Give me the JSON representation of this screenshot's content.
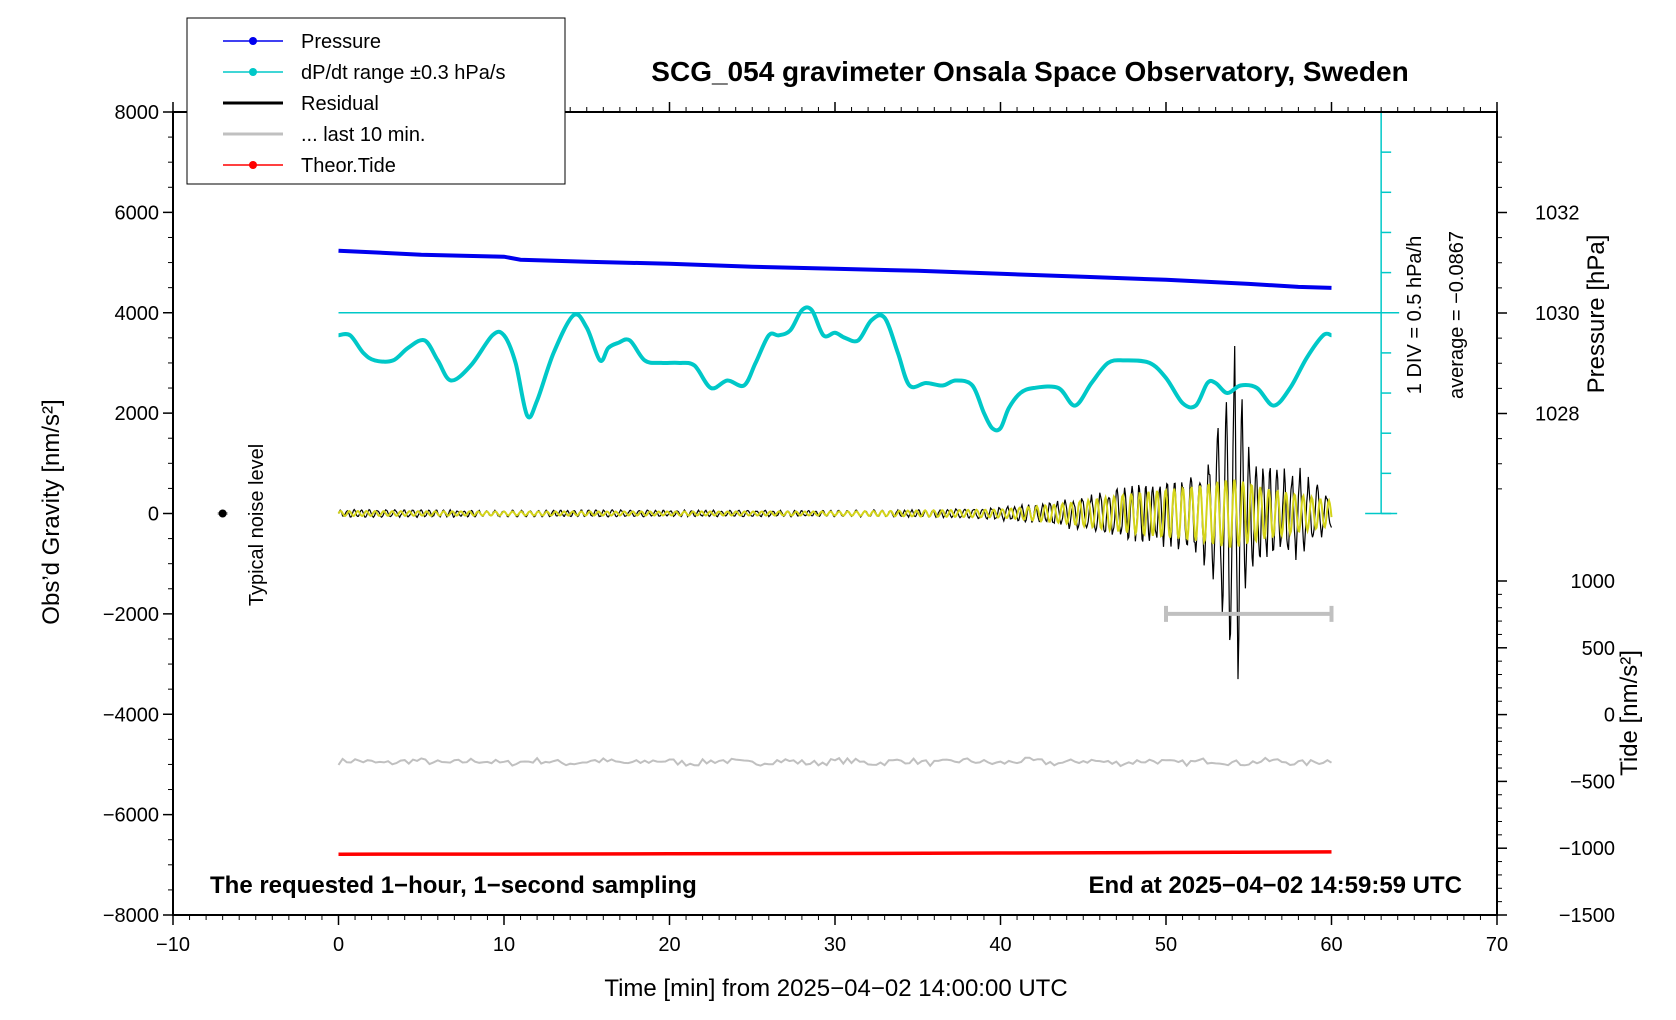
{
  "chart_data": {
    "type": "line",
    "title": "SCG_054 gravimeter Onsala Space Observatory, Sweden",
    "xlabel": "Time [min] from 2025−04−02 14:00:00 UTC",
    "ylabel_left": "Obs’d Gravity [nm/s²]",
    "ylabel_pressure": "Pressure [hPa]",
    "ylabel_tide": "Tide [nm/s²]",
    "xlim": [
      -10,
      70
    ],
    "ylim_left": [
      -8000,
      8000
    ],
    "pressure_range": [
      1026,
      1034
    ],
    "tide_range": [
      -1500,
      1000
    ],
    "x_ticks": [
      -10,
      0,
      10,
      20,
      30,
      40,
      50,
      60,
      70
    ],
    "x_tick_labels": [
      "−10",
      "0",
      "10",
      "20",
      "30",
      "40",
      "50",
      "60",
      "70"
    ],
    "y_ticks_left": [
      -8000,
      -6000,
      -4000,
      -2000,
      0,
      2000,
      4000,
      6000,
      8000
    ],
    "y_tick_labels_left": [
      "−8000",
      "−6000",
      "−4000",
      "−2000",
      "0",
      "2000",
      "4000",
      "6000",
      "8000"
    ],
    "pressure_ticks": [
      1028,
      1030,
      1032
    ],
    "tide_ticks": [
      -1500,
      -1000,
      -500,
      0,
      500,
      1000
    ],
    "tide_tick_labels": [
      "−1500",
      "−1000",
      "−500",
      "0",
      "500",
      "1000"
    ],
    "legend": [
      {
        "label": "Pressure",
        "color": "#0000ee",
        "marker": true
      },
      {
        "label": "dP/dt range ±0.3 hPa/s",
        "color": "#00c8c8",
        "marker": true
      },
      {
        "label": "Residual",
        "color": "#000000",
        "marker": false
      },
      {
        "label": "... last 10 min.",
        "color": "#c0c0c0",
        "marker": false
      },
      {
        "label": "Theor.Tide",
        "color": "#ff0000",
        "marker": true
      }
    ],
    "legend_placement": "top-left",
    "series": [
      {
        "name": "Pressure",
        "color": "#0000ee",
        "axis": "pressure",
        "x": [
          0,
          5,
          10,
          11,
          15,
          20,
          25,
          30,
          35,
          40,
          45,
          50,
          55,
          58,
          60
        ],
        "values": [
          1031.24,
          1031.16,
          1031.12,
          1031.06,
          1031.02,
          1030.98,
          1030.92,
          1030.88,
          1030.84,
          1030.78,
          1030.72,
          1030.66,
          1030.58,
          1030.52,
          1030.5
        ]
      },
      {
        "name": "dP/dt",
        "color": "#00c8c8",
        "axis": "left",
        "x": [
          0,
          0.7,
          1.5,
          2.2,
          3.3,
          4.2,
          5.2,
          6,
          6.8,
          8,
          9.3,
          10,
          10.7,
          11.4,
          12,
          13,
          14.2,
          15,
          15.8,
          16.3,
          16.9,
          17.6,
          18.5,
          19.5,
          20.5,
          21.5,
          22.5,
          23.5,
          24.5,
          25.2,
          26,
          26.6,
          27.3,
          28,
          28.6,
          29.3,
          30,
          30.6,
          31.4,
          32.2,
          33,
          33.8,
          34.5,
          35.5,
          36.5,
          37.3,
          38.3,
          39,
          39.5,
          40,
          40.5,
          41.2,
          42,
          43.5,
          44.5,
          45.5,
          46.5,
          47.5,
          49,
          50,
          51,
          51.8,
          52.5,
          53,
          53.7,
          54.5,
          55.5,
          56.5,
          57.5,
          58.5,
          59.5,
          60
        ],
        "values": [
          3550,
          3550,
          3200,
          3050,
          3050,
          3300,
          3450,
          3050,
          2650,
          2950,
          3550,
          3550,
          3000,
          1950,
          2250,
          3200,
          3950,
          3700,
          3050,
          3300,
          3400,
          3450,
          3050,
          3000,
          3000,
          2950,
          2500,
          2650,
          2550,
          3000,
          3550,
          3550,
          3650,
          4050,
          4050,
          3550,
          3600,
          3500,
          3450,
          3850,
          3900,
          3200,
          2550,
          2600,
          2550,
          2650,
          2550,
          2000,
          1700,
          1700,
          2100,
          2400,
          2500,
          2500,
          2150,
          2600,
          3000,
          3050,
          3000,
          2700,
          2200,
          2150,
          2600,
          2600,
          2400,
          2550,
          2500,
          2150,
          2500,
          3100,
          3550,
          3550
        ]
      },
      {
        "name": "Residual",
        "color": "#000000",
        "axis": "left",
        "envelope_x": [
          0,
          5,
          10,
          15,
          20,
          25,
          30,
          35,
          38,
          40,
          42,
          44,
          46,
          48,
          50,
          52,
          53,
          53.5,
          54,
          54.3,
          54.6,
          55,
          56,
          57,
          58,
          59,
          60
        ],
        "envelope": [
          80,
          80,
          70,
          80,
          70,
          70,
          70,
          80,
          100,
          150,
          200,
          300,
          450,
          600,
          700,
          900,
          1600,
          2400,
          3400,
          3900,
          2600,
          1500,
          1000,
          900,
          950,
          700,
          350
        ]
      },
      {
        "name": "Residual (filtered)",
        "color": "#d4d41a",
        "axis": "left",
        "envelope_x": [
          0,
          10,
          20,
          30,
          40,
          44,
          48,
          52,
          54,
          56,
          60
        ],
        "envelope": [
          50,
          40,
          40,
          40,
          80,
          200,
          400,
          550,
          700,
          500,
          250
        ]
      },
      {
        "name": "... last 10 min.",
        "color": "#c0c0c0",
        "axis": "left",
        "x": [
          0,
          60
        ],
        "values": [
          -4950,
          -4950
        ],
        "noise": 60
      },
      {
        "name": "Theor.Tide",
        "color": "#ff0000",
        "axis": "tide",
        "x": [
          0,
          10,
          20,
          30,
          40,
          50,
          60
        ],
        "values": [
          -1045,
          -1044,
          -1042,
          -1040,
          -1036,
          -1032,
          -1028
        ]
      }
    ],
    "pressure_scale": {
      "color": "#00c8c8",
      "x": 63,
      "y_min": 0,
      "y_max": 8000,
      "tick_count": 11,
      "label": "1 DIV = 0.5 hPa/h",
      "average_label": "average = −0.0867",
      "average_value": 4000
    },
    "typical_noise": {
      "label": "Typical noise level",
      "x": -7,
      "value": 0
    },
    "last_10_bar": {
      "x_start": 50,
      "x_end": 60,
      "value": -2000
    },
    "footer_left": "The requested 1−hour, 1−second sampling",
    "footer_right": "End at 2025−04−02 14:59:59 UTC",
    "grid": false
  }
}
